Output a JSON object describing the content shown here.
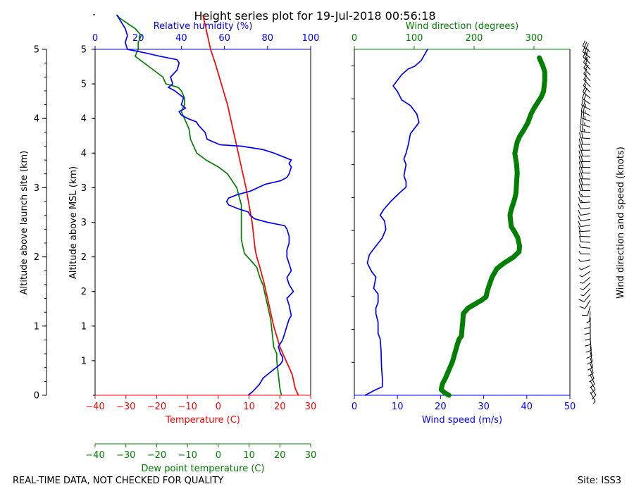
{
  "title": "Height series plot for 19-Jul-2018 00:56:18",
  "footer_left": "REAL-TIME DATA, NOT CHECKED FOR QUALITY",
  "footer_right": "Site: ISS3",
  "colors": {
    "red": "#ff0000",
    "green": "#008000",
    "blue": "#0000ff",
    "black": "#000000"
  },
  "chart_data": [
    {
      "type": "line",
      "panel": "left",
      "axes": {
        "temperature": {
          "label": "Temperature (C)",
          "range": [
            -40,
            30
          ],
          "ticks": [
            -40,
            -30,
            -20,
            -10,
            0,
            10,
            20,
            30
          ],
          "color": "#ff0000"
        },
        "dewpoint": {
          "label": "Dew point temperature (C)",
          "range": [
            -40,
            30
          ],
          "ticks": [
            -40,
            -30,
            -20,
            -10,
            0,
            10,
            20,
            30
          ],
          "color": "#008000"
        },
        "humidity": {
          "label": "Relative humidity (%)",
          "range": [
            0,
            100
          ],
          "ticks": [
            0,
            20,
            40,
            60,
            80,
            100
          ],
          "color": "#0000ff"
        },
        "msl": {
          "label": "Altitude above MSL (km)",
          "range": [
            0,
            5
          ],
          "tick_values": [
            0.5,
            1,
            1.5,
            2,
            2.5,
            3,
            3.5,
            4,
            4.5,
            5
          ],
          "tick_labels": [
            "1",
            "1",
            "2",
            "2",
            "3",
            "3",
            "4",
            "4",
            "5",
            "5"
          ]
        },
        "site": {
          "label": "Altitude above launch site (km)",
          "range": [
            0,
            5
          ],
          "ticks": [
            0,
            1,
            2,
            3,
            4,
            5
          ]
        }
      },
      "series": [
        {
          "name": "Temperature",
          "axis": "temperature",
          "color": "#ff0000",
          "points": [
            [
              26,
              0
            ],
            [
              25,
              0.1
            ],
            [
              24,
              0.3
            ],
            [
              22,
              0.5
            ],
            [
              20,
              0.7
            ],
            [
              18,
              1.0
            ],
            [
              16.5,
              1.3
            ],
            [
              15,
              1.6
            ],
            [
              13.5,
              1.85
            ],
            [
              12.5,
              2.0
            ],
            [
              12,
              2.1
            ],
            [
              11.5,
              2.3
            ],
            [
              11,
              2.5
            ],
            [
              9,
              3.0
            ],
            [
              7.5,
              3.3
            ],
            [
              6,
              3.6
            ],
            [
              4,
              4.0
            ],
            [
              3,
              4.2
            ],
            [
              1,
              4.5
            ],
            [
              -1,
              4.8
            ],
            [
              -2.5,
              5.0
            ],
            [
              -3.5,
              5.2
            ],
            [
              -5,
              5.5
            ]
          ]
        },
        {
          "name": "Dew point",
          "axis": "dewpoint",
          "color": "#008000",
          "points": [
            [
              20.5,
              0
            ],
            [
              20,
              0.1
            ],
            [
              19.5,
              0.3
            ],
            [
              19,
              0.5
            ],
            [
              19,
              0.6
            ],
            [
              18,
              0.7
            ],
            [
              17.5,
              0.9
            ],
            [
              17,
              1.1
            ],
            [
              16,
              1.3
            ],
            [
              15.5,
              1.4
            ],
            [
              14.5,
              1.6
            ],
            [
              13.5,
              1.7
            ],
            [
              12.5,
              1.85
            ],
            [
              10.5,
              1.95
            ],
            [
              9.5,
              2.0
            ],
            [
              8.5,
              2.05
            ],
            [
              7.5,
              2.25
            ],
            [
              7.5,
              2.5
            ],
            [
              7.5,
              2.75
            ],
            [
              6,
              3.0
            ],
            [
              3,
              3.2
            ],
            [
              0,
              3.3
            ],
            [
              -4,
              3.4
            ],
            [
              -7,
              3.5
            ],
            [
              -9,
              3.7
            ],
            [
              -9.5,
              3.85
            ],
            [
              -11,
              4.0
            ],
            [
              -12,
              4.1
            ],
            [
              -11,
              4.2
            ],
            [
              -11,
              4.3
            ],
            [
              -12,
              4.4
            ],
            [
              -13,
              4.45
            ],
            [
              -17,
              4.5
            ],
            [
              -18,
              4.6
            ],
            [
              -21,
              4.7
            ],
            [
              -27,
              4.9
            ],
            [
              -26,
              5.0
            ],
            [
              -26,
              5.1
            ],
            [
              -25,
              5.2
            ],
            [
              -27,
              5.3
            ],
            [
              -32,
              5.45
            ],
            [
              -33,
              5.5
            ]
          ]
        },
        {
          "name": "Relative humidity",
          "axis": "humidity",
          "color": "#0000ff",
          "points": [
            [
              71,
              0
            ],
            [
              73,
              0.05
            ],
            [
              76,
              0.15
            ],
            [
              78,
              0.25
            ],
            [
              80,
              0.3
            ],
            [
              82,
              0.35
            ],
            [
              84,
              0.4
            ],
            [
              86,
              0.45
            ],
            [
              87,
              0.5
            ],
            [
              87,
              0.55
            ],
            [
              86,
              0.6
            ],
            [
              85,
              0.7
            ],
            [
              87,
              0.8
            ],
            [
              88,
              0.9
            ],
            [
              89,
              1.0
            ],
            [
              90,
              1.1
            ],
            [
              91,
              1.15
            ],
            [
              90,
              1.3
            ],
            [
              89,
              1.4
            ],
            [
              92,
              1.5
            ],
            [
              90,
              1.6
            ],
            [
              89,
              1.7
            ],
            [
              91,
              1.8
            ],
            [
              90,
              1.9
            ],
            [
              89,
              2.0
            ],
            [
              89,
              2.1
            ],
            [
              90,
              2.2
            ],
            [
              90,
              2.3
            ],
            [
              89,
              2.4
            ],
            [
              88,
              2.45
            ],
            [
              80,
              2.5
            ],
            [
              74,
              2.55
            ],
            [
              72,
              2.6
            ],
            [
              71,
              2.65
            ],
            [
              66,
              2.7
            ],
            [
              62,
              2.75
            ],
            [
              61,
              2.8
            ],
            [
              62,
              2.85
            ],
            [
              66,
              2.9
            ],
            [
              72,
              2.95
            ],
            [
              79,
              3.05
            ],
            [
              86,
              3.1
            ],
            [
              89,
              3.15
            ],
            [
              90,
              3.2
            ],
            [
              91,
              3.3
            ],
            [
              90,
              3.35
            ],
            [
              91,
              3.4
            ],
            [
              87,
              3.45
            ],
            [
              83,
              3.5
            ],
            [
              78,
              3.55
            ],
            [
              68,
              3.6
            ],
            [
              58,
              3.62
            ],
            [
              52,
              3.7
            ],
            [
              51,
              3.8
            ],
            [
              48,
              3.9
            ],
            [
              47,
              3.95
            ],
            [
              43,
              4.0
            ],
            [
              40,
              4.05
            ],
            [
              39,
              4.1
            ],
            [
              42,
              4.15
            ],
            [
              40,
              4.2
            ],
            [
              41,
              4.3
            ],
            [
              37,
              4.4
            ],
            [
              34,
              4.45
            ],
            [
              36,
              4.5
            ],
            [
              35,
              4.6
            ],
            [
              38,
              4.7
            ],
            [
              39,
              4.8
            ],
            [
              38,
              4.85
            ],
            [
              30,
              4.9
            ],
            [
              23,
              4.95
            ],
            [
              15,
              5.0
            ],
            [
              14,
              5.1
            ],
            [
              15,
              5.2
            ],
            [
              14,
              5.3
            ],
            [
              12,
              5.4
            ],
            [
              11,
              5.45
            ],
            [
              10,
              5.5
            ]
          ]
        }
      ]
    },
    {
      "type": "line",
      "panel": "right",
      "axes": {
        "speed": {
          "label": "Wind speed (m/s)",
          "range": [
            0,
            50
          ],
          "ticks": [
            0,
            10,
            20,
            30,
            40,
            50
          ],
          "color": "#0000ff"
        },
        "direction": {
          "label": "Wind direction (degrees)",
          "range": [
            0,
            360
          ],
          "ticks": [
            0,
            100,
            200,
            300
          ],
          "color": "#008000"
        },
        "barbs": {
          "label": "Wind direction and speed (knots)"
        }
      },
      "series": [
        {
          "name": "Wind speed",
          "axis": "speed",
          "color": "#0000ff",
          "points": [
            [
              2.5,
              0
            ],
            [
              5,
              0.1
            ],
            [
              6.5,
              0.15
            ],
            [
              6.5,
              0.3
            ],
            [
              6.3,
              0.5
            ],
            [
              6.2,
              0.8
            ],
            [
              6,
              1.0
            ],
            [
              5.5,
              1.1
            ],
            [
              5.5,
              1.3
            ],
            [
              5,
              1.45
            ],
            [
              5,
              1.55
            ],
            [
              5.5,
              1.65
            ],
            [
              5.5,
              1.8
            ],
            [
              4.5,
              1.9
            ],
            [
              5,
              2.1
            ],
            [
              4,
              2.2
            ],
            [
              3,
              2.35
            ],
            [
              3.5,
              2.5
            ],
            [
              5,
              2.65
            ],
            [
              6.5,
              2.8
            ],
            [
              7.3,
              2.95
            ],
            [
              7,
              3.1
            ],
            [
              6,
              3.2
            ],
            [
              6.8,
              3.3
            ],
            [
              8.5,
              3.45
            ],
            [
              10.5,
              3.6
            ],
            [
              12,
              3.7
            ],
            [
              12,
              3.8
            ],
            [
              11.5,
              3.9
            ],
            [
              12,
              4.1
            ],
            [
              11.5,
              4.2
            ],
            [
              12,
              4.3
            ],
            [
              12.5,
              4.45
            ],
            [
              13,
              4.65
            ],
            [
              14,
              4.75
            ],
            [
              15,
              4.85
            ],
            [
              14.5,
              5.0
            ],
            [
              13,
              5.15
            ],
            [
              11,
              5.25
            ],
            [
              10,
              5.4
            ],
            [
              9,
              5.5
            ],
            [
              10,
              5.6
            ],
            [
              11,
              5.7
            ],
            [
              12.5,
              5.8
            ],
            [
              14,
              5.85
            ],
            [
              15.5,
              5.95
            ],
            [
              17,
              6.15
            ]
          ],
          "note": ""
        },
        {
          "name": "Wind direction",
          "axis": "direction",
          "color": "#008000",
          "points": [
            [
              158,
              0
            ],
            [
              150,
              0.05
            ],
            [
              145,
              0.1
            ],
            [
              147,
              0.2
            ],
            [
              152,
              0.3
            ],
            [
              158,
              0.45
            ],
            [
              164,
              0.6
            ],
            [
              168,
              0.75
            ],
            [
              172,
              0.9
            ],
            [
              175,
              1.0
            ],
            [
              179,
              1.05
            ],
            [
              180,
              1.2
            ],
            [
              181,
              1.3
            ],
            [
              182,
              1.45
            ],
            [
              190,
              1.55
            ],
            [
              198,
              1.6
            ],
            [
              206,
              1.65
            ],
            [
              214,
              1.7
            ],
            [
              220,
              1.75
            ],
            [
              222,
              1.85
            ],
            [
              225,
              1.95
            ],
            [
              230,
              2.1
            ],
            [
              238,
              2.25
            ],
            [
              250,
              2.35
            ],
            [
              265,
              2.45
            ],
            [
              275,
              2.55
            ],
            [
              276,
              2.65
            ],
            [
              273,
              2.8
            ],
            [
              268,
              2.9
            ],
            [
              262,
              3.0
            ],
            [
              260,
              3.2
            ],
            [
              262,
              3.3
            ],
            [
              265,
              3.4
            ],
            [
              268,
              3.5
            ],
            [
              270,
              3.6
            ],
            [
              271,
              3.8
            ],
            [
              272,
              3.95
            ],
            [
              271,
              4.1
            ],
            [
              268,
              4.3
            ],
            [
              270,
              4.4
            ],
            [
              272,
              4.5
            ],
            [
              276,
              4.6
            ],
            [
              282,
              4.7
            ],
            [
              290,
              4.85
            ],
            [
              295,
              5.0
            ],
            [
              300,
              5.1
            ],
            [
              306,
              5.2
            ],
            [
              312,
              5.3
            ],
            [
              316,
              5.4
            ],
            [
              317,
              5.5
            ],
            [
              318,
              5.6
            ],
            [
              318,
              5.75
            ],
            [
              315,
              5.85
            ],
            [
              309,
              6.0
            ]
          ]
        }
      ]
    }
  ]
}
